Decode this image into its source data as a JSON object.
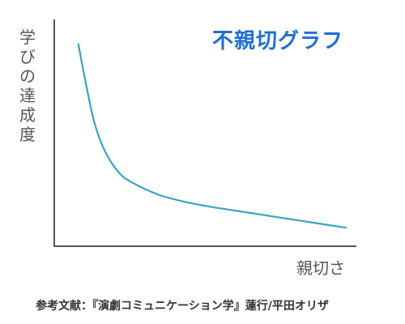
{
  "chart_data": {
    "type": "line",
    "title": "不親切グラフ",
    "xlabel": "親切さ",
    "ylabel": "学びの達成度",
    "x": [
      0.0,
      0.25,
      0.6,
      1.0,
      1.5,
      2.0,
      3.0,
      4.0,
      5.0,
      6.0,
      7.0,
      8.0,
      9.0,
      10.0
    ],
    "series": [
      {
        "values": [
          9.3,
          7.6,
          5.5,
          4.1,
          3.1,
          2.6,
          2.0,
          1.65,
          1.4,
          1.2,
          1.0,
          0.8,
          0.6,
          0.4
        ]
      }
    ],
    "xlim": [
      -0.9,
      10.4
    ],
    "ylim": [
      -0.5,
      10.5
    ],
    "grid": false,
    "line_color": "#3ba1c4",
    "title_color": "#1f6fd0"
  },
  "source_note": "参考文献：『演劇コミュニケーション学』蓮行/平田オリザ"
}
